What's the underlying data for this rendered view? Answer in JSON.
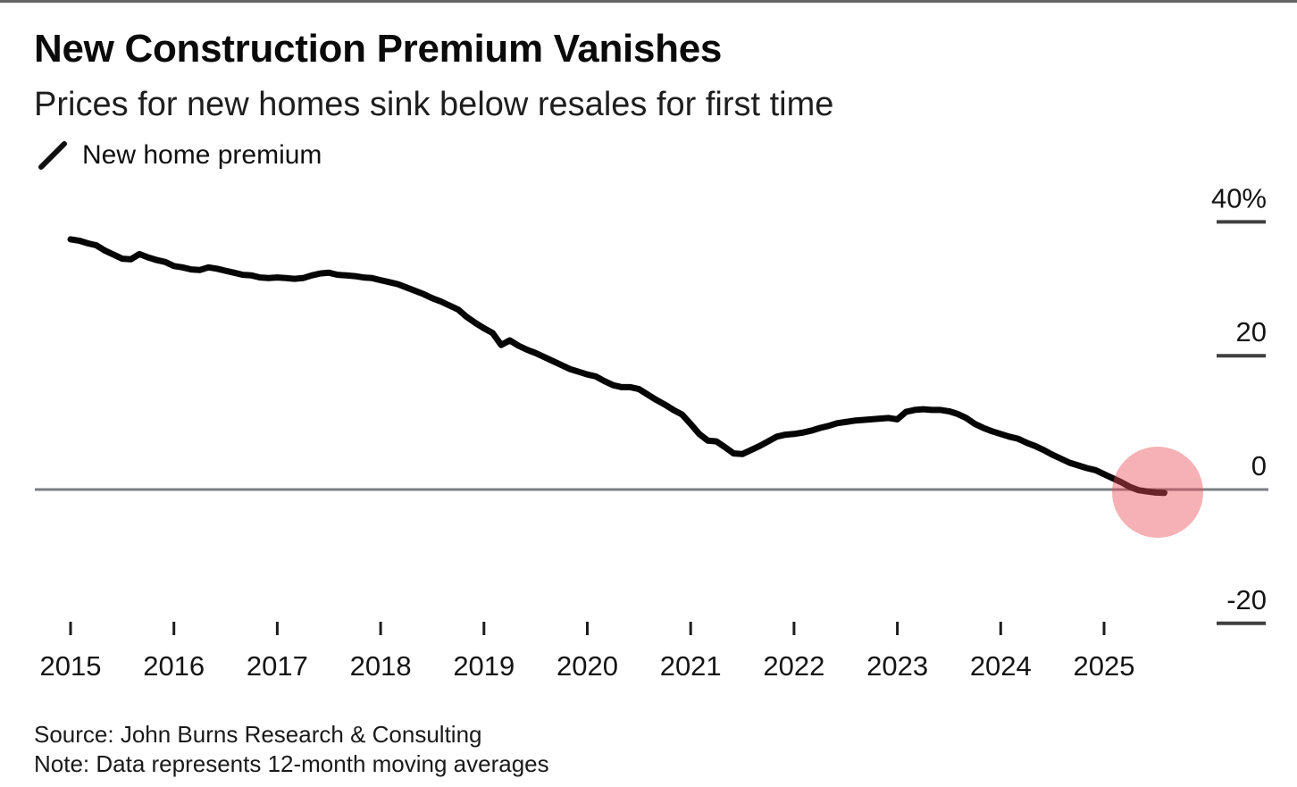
{
  "header": {
    "title": "New Construction Premium Vanishes",
    "subtitle": "Prices for new homes sink below resales for first time"
  },
  "legend": {
    "label": "New home premium"
  },
  "footer": {
    "source": "Source: John Burns Research & Consulting",
    "note": "Note: Data represents 12-month moving averages"
  },
  "colors": {
    "line": "#050505",
    "highlight_circle": "rgba(232,77,86,0.44)",
    "zero_line": "#7b7e81",
    "x_tick": "#1d1d1d",
    "y_tick": "#3f3f3f",
    "label_text": "#141414"
  },
  "chart_data": {
    "type": "line",
    "title": "New Construction Premium Vanishes",
    "subtitle": "Prices for new homes sink below resales for first time",
    "unit": "%",
    "grid": false,
    "legend_position": "top-left",
    "zero_line": true,
    "ylim": [
      -25,
      45
    ],
    "x_range_years": [
      2015.0,
      2025.58
    ],
    "x_ticks": [
      "2015",
      "2016",
      "2017",
      "2018",
      "2019",
      "2020",
      "2021",
      "2022",
      "2023",
      "2024",
      "2025"
    ],
    "y_ticks": [
      {
        "label": "40%",
        "value": 40
      },
      {
        "label": "20",
        "value": 20
      },
      {
        "label": "0",
        "value": 0
      },
      {
        "label": "-20",
        "value": -20
      }
    ],
    "highlight": {
      "type": "circle",
      "x_year": 2025.52,
      "value": -0.4
    },
    "series": [
      {
        "name": "New home premium",
        "start": "2015-01",
        "frequency": "monthly",
        "values": [
          37.4,
          37.2,
          36.8,
          36.5,
          35.7,
          35.1,
          34.5,
          34.4,
          35.2,
          34.7,
          34.3,
          34.0,
          33.4,
          33.2,
          32.9,
          32.8,
          33.2,
          33.0,
          32.7,
          32.4,
          32.1,
          32.0,
          31.7,
          31.6,
          31.7,
          31.6,
          31.5,
          31.6,
          32.0,
          32.3,
          32.4,
          32.1,
          32.0,
          31.9,
          31.7,
          31.6,
          31.3,
          31.0,
          30.7,
          30.2,
          29.7,
          29.2,
          28.6,
          28.1,
          27.5,
          26.9,
          25.8,
          24.9,
          24.1,
          23.4,
          21.6,
          22.3,
          21.5,
          20.9,
          20.4,
          19.8,
          19.2,
          18.6,
          18.0,
          17.6,
          17.2,
          16.9,
          16.2,
          15.6,
          15.3,
          15.3,
          15.0,
          14.2,
          13.4,
          12.7,
          11.9,
          11.2,
          9.8,
          8.3,
          7.3,
          7.2,
          6.3,
          5.4,
          5.3,
          5.9,
          6.5,
          7.2,
          7.9,
          8.2,
          8.3,
          8.5,
          8.8,
          9.2,
          9.5,
          9.9,
          10.1,
          10.3,
          10.4,
          10.5,
          10.6,
          10.7,
          10.5,
          11.6,
          11.9,
          12.0,
          11.9,
          11.9,
          11.7,
          11.3,
          10.7,
          9.8,
          9.2,
          8.7,
          8.3,
          7.9,
          7.6,
          7.0,
          6.5,
          5.9,
          5.2,
          4.6,
          4.0,
          3.6,
          3.2,
          2.9,
          2.3,
          1.7,
          1.1,
          0.4,
          -0.1,
          -0.3,
          -0.45,
          -0.5
        ]
      }
    ]
  }
}
